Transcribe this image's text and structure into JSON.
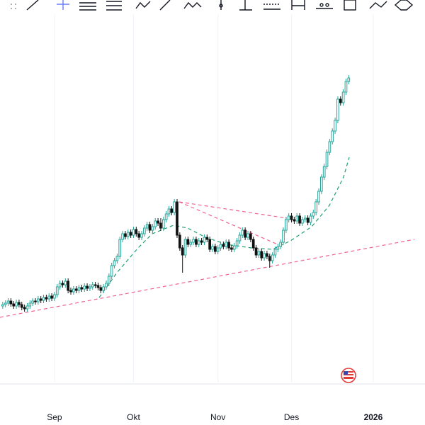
{
  "chart_data": {
    "type": "candlestick",
    "xlim": [
      -1,
      155
    ],
    "ylim": [
      60,
      600
    ],
    "xticks": [
      {
        "value": 19,
        "label": "Sep"
      },
      {
        "value": 48,
        "label": "Okt"
      },
      {
        "value": 79,
        "label": "Nov"
      },
      {
        "value": 106,
        "label": "Des"
      },
      {
        "value": 136,
        "label": "2026"
      }
    ],
    "up_color": "#26a69a",
    "down_color": "#111111",
    "open": [
      168,
      170,
      172,
      175,
      171,
      168,
      173,
      170,
      166,
      164,
      168,
      172,
      175,
      174,
      178,
      176,
      180,
      178,
      182,
      179,
      184,
      195,
      200,
      198,
      203,
      190,
      188,
      192,
      190,
      194,
      192,
      196,
      193,
      195,
      198,
      197,
      194,
      190,
      195,
      200,
      210,
      225,
      232,
      238,
      262,
      270,
      266,
      272,
      268,
      276,
      270,
      265,
      270,
      278,
      283,
      275,
      280,
      288,
      285,
      278,
      290,
      298,
      305,
      300,
      315,
      268,
      250,
      240,
      262,
      255,
      258,
      262,
      255,
      260,
      258,
      265,
      262,
      248,
      252,
      245,
      250,
      255,
      252,
      258,
      250,
      248,
      253,
      260,
      268,
      275,
      265,
      270,
      262,
      250,
      240,
      245,
      236,
      242,
      238,
      232,
      240,
      248,
      252,
      258,
      275,
      290,
      295,
      290,
      288,
      295,
      285,
      290,
      292,
      286,
      295,
      300,
      315,
      330,
      350,
      365,
      385,
      400,
      415,
      430,
      460,
      455,
      470,
      485
    ],
    "high": [
      174,
      176,
      179,
      179,
      175,
      177,
      177,
      174,
      170,
      172,
      176,
      179,
      179,
      182,
      182,
      184,
      184,
      186,
      186,
      188,
      199,
      204,
      204,
      207,
      207,
      194,
      196,
      196,
      198,
      198,
      200,
      200,
      199,
      202,
      202,
      201,
      198,
      199,
      204,
      214,
      229,
      236,
      242,
      266,
      274,
      274,
      276,
      276,
      280,
      280,
      274,
      274,
      282,
      287,
      287,
      284,
      292,
      292,
      292,
      294,
      302,
      309,
      309,
      319,
      319,
      272,
      254,
      266,
      266,
      262,
      266,
      266,
      264,
      264,
      269,
      269,
      266,
      256,
      256,
      254,
      259,
      259,
      262,
      262,
      254,
      257,
      264,
      272,
      279,
      279,
      274,
      274,
      266,
      254,
      249,
      249,
      246,
      246,
      242,
      244,
      252,
      256,
      262,
      279,
      294,
      299,
      299,
      294,
      299,
      299,
      294,
      296,
      296,
      299,
      304,
      319,
      334,
      354,
      369,
      389,
      404,
      419,
      434,
      464,
      464,
      474,
      489,
      494
    ],
    "low": [
      164,
      166,
      168,
      167,
      164,
      164,
      166,
      162,
      160,
      160,
      164,
      168,
      170,
      170,
      172,
      172,
      174,
      174,
      175,
      175,
      180,
      191,
      194,
      194,
      186,
      184,
      184,
      186,
      186,
      188,
      188,
      189,
      189,
      191,
      193,
      190,
      186,
      186,
      191,
      196,
      206,
      221,
      228,
      234,
      258,
      262,
      262,
      264,
      264,
      266,
      261,
      261,
      266,
      274,
      271,
      271,
      276,
      281,
      274,
      274,
      286,
      294,
      296,
      296,
      264,
      246,
      215,
      236,
      251,
      251,
      254,
      251,
      251,
      254,
      254,
      258,
      244,
      244,
      241,
      241,
      246,
      248,
      248,
      246,
      244,
      244,
      249,
      256,
      264,
      261,
      261,
      258,
      246,
      236,
      236,
      232,
      232,
      234,
      222,
      228,
      236,
      244,
      248,
      254,
      271,
      286,
      286,
      284,
      284,
      281,
      281,
      286,
      282,
      282,
      291,
      296,
      311,
      326,
      346,
      361,
      381,
      396,
      411,
      426,
      451,
      451,
      466,
      481
    ],
    "close": [
      170,
      172,
      175,
      171,
      168,
      173,
      170,
      166,
      164,
      168,
      172,
      175,
      174,
      178,
      176,
      180,
      178,
      182,
      179,
      184,
      195,
      200,
      198,
      203,
      190,
      188,
      192,
      190,
      194,
      192,
      196,
      193,
      195,
      198,
      197,
      194,
      190,
      195,
      200,
      210,
      225,
      232,
      238,
      262,
      270,
      266,
      272,
      268,
      276,
      270,
      265,
      270,
      278,
      283,
      275,
      280,
      288,
      285,
      278,
      290,
      298,
      305,
      300,
      315,
      268,
      250,
      240,
      262,
      255,
      258,
      262,
      255,
      260,
      258,
      265,
      262,
      248,
      252,
      245,
      250,
      255,
      252,
      258,
      250,
      248,
      253,
      260,
      268,
      275,
      265,
      270,
      262,
      250,
      240,
      245,
      236,
      242,
      238,
      232,
      240,
      248,
      252,
      258,
      275,
      290,
      295,
      290,
      288,
      295,
      285,
      290,
      292,
      286,
      295,
      300,
      315,
      330,
      350,
      365,
      385,
      400,
      415,
      430,
      460,
      455,
      470,
      485,
      490
    ]
  }
}
